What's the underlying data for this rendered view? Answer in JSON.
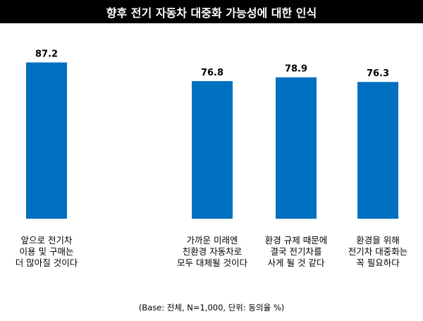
{
  "title": "향후 전기 자동차 대중화 가능성에 대한 인식",
  "note": "(Base: 전체, N=1,000, 단위: 동의율 %)",
  "chart_data": {
    "type": "bar",
    "title": "향후 전기 자동차 대중화 가능성에 대한 인식",
    "categories": [
      "앞으로 전기차\n이용 및 구매는\n더 많아질 것이다",
      "가까운 미래엔\n친환경 자동차로\n모두 대체될 것이다",
      "환경 규제 때문에\n결국 전기차를\n사게 될 것 같다",
      "환경을 위해\n전기차 대중화는\n꼭 필요하다"
    ],
    "values": [
      87.2,
      76.8,
      78.9,
      76.3
    ],
    "value_labels": [
      "87.2",
      "76.8",
      "78.9",
      "76.3"
    ],
    "ylim": [
      0,
      100
    ],
    "xlabel": "",
    "ylabel": "",
    "grid": false,
    "bar_color": "#0070C0"
  }
}
